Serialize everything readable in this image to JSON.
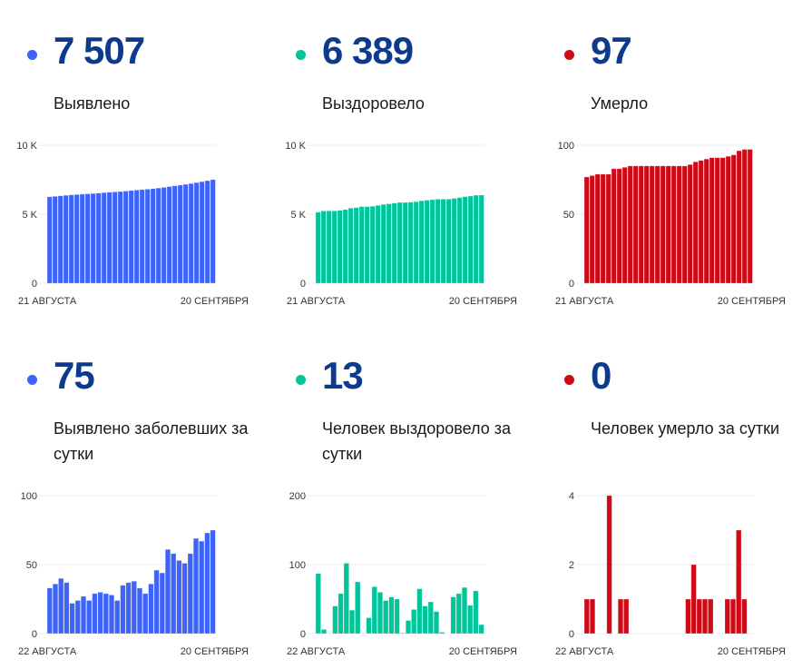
{
  "colors": {
    "cases": "#3e63f8",
    "recovered": "#00c49a",
    "deaths": "#cf0a17",
    "number": "#0c3a8f"
  },
  "panels": [
    {
      "id": "cases-total",
      "value": "7 507",
      "label": "Выявлено",
      "color_key": "cases"
    },
    {
      "id": "recovered-total",
      "value": "6 389",
      "label": "Выздоровело",
      "color_key": "recovered"
    },
    {
      "id": "deaths-total",
      "value": "97",
      "label": "Умерло",
      "color_key": "deaths"
    },
    {
      "id": "cases-daily",
      "value": "75",
      "label": "Выявлено заболевших за сутки",
      "color_key": "cases"
    },
    {
      "id": "recovered-daily",
      "value": "13",
      "label": "Человек выздоровело за сутки",
      "color_key": "recovered"
    },
    {
      "id": "deaths-daily",
      "value": "0",
      "label": "Человек умерло за сутки",
      "color_key": "deaths"
    }
  ],
  "chart_data": [
    {
      "type": "bar",
      "title": "Выявлено",
      "color_key": "cases",
      "x_start_label": "21 АВГУСТА",
      "x_end_label": "20 СЕНТЯБРЯ",
      "ylim": [
        0,
        10000
      ],
      "yticks": [
        0,
        5000,
        10000
      ],
      "ytick_labels": [
        "0",
        "5 K",
        "10 K"
      ],
      "grid": true,
      "values": [
        6261,
        6294,
        6330,
        6370,
        6407,
        6429,
        6453,
        6480,
        6504,
        6533,
        6563,
        6592,
        6620,
        6644,
        6679,
        6716,
        6754,
        6787,
        6816,
        6852,
        6898,
        6942,
        7003,
        7061,
        7114,
        7165,
        7223,
        7292,
        7359,
        7432,
        7507
      ]
    },
    {
      "type": "bar",
      "title": "Выздоровело",
      "color_key": "recovered",
      "x_start_label": "21 АВГУСТА",
      "x_end_label": "20 СЕНТЯБРЯ",
      "ylim": [
        0,
        10000
      ],
      "yticks": [
        0,
        5000,
        10000
      ],
      "ytick_labels": [
        "0",
        "5 K",
        "10 K"
      ],
      "grid": true,
      "values": [
        5151,
        5238,
        5244,
        5244,
        5284,
        5342,
        5444,
        5478,
        5553,
        5553,
        5576,
        5644,
        5704,
        5752,
        5805,
        5855,
        5856,
        5875,
        5910,
        5975,
        6015,
        6061,
        6093,
        6095,
        6095,
        6148,
        6206,
        6273,
        6314,
        6376,
        6389
      ]
    },
    {
      "type": "bar",
      "title": "Умерло",
      "color_key": "deaths",
      "x_start_label": "21 АВГУСТА",
      "x_end_label": "20 СЕНТЯБРЯ",
      "ylim": [
        0,
        100
      ],
      "yticks": [
        0,
        50,
        100
      ],
      "ytick_labels": [
        "0",
        "50",
        "100"
      ],
      "grid": true,
      "values": [
        77,
        78,
        79,
        79,
        79,
        83,
        83,
        84,
        85,
        85,
        85,
        85,
        85,
        85,
        85,
        85,
        85,
        85,
        85,
        86,
        88,
        89,
        90,
        91,
        91,
        91,
        92,
        93,
        96,
        97,
        97
      ]
    },
    {
      "type": "bar",
      "title": "Выявлено заболевших за сутки",
      "color_key": "cases",
      "x_start_label": "22 АВГУСТА",
      "x_end_label": "20 СЕНТЯБРЯ",
      "ylim": [
        0,
        100
      ],
      "yticks": [
        0,
        50,
        100
      ],
      "ytick_labels": [
        "0",
        "50",
        "100"
      ],
      "grid": true,
      "values": [
        33,
        36,
        40,
        37,
        22,
        24,
        27,
        24,
        29,
        30,
        29,
        28,
        24,
        35,
        37,
        38,
        33,
        29,
        36,
        46,
        44,
        61,
        58,
        53,
        51,
        58,
        69,
        67,
        73,
        75
      ]
    },
    {
      "type": "bar",
      "title": "Человек выздоровело за сутки",
      "color_key": "recovered",
      "x_start_label": "22 АВГУСТА",
      "x_end_label": "20 СЕНТЯБРЯ",
      "ylim": [
        0,
        200
      ],
      "yticks": [
        0,
        100,
        200
      ],
      "ytick_labels": [
        "0",
        "100",
        "200"
      ],
      "grid": true,
      "values": [
        87,
        6,
        0,
        40,
        58,
        102,
        34,
        75,
        0,
        23,
        68,
        60,
        48,
        53,
        50,
        1,
        19,
        35,
        65,
        40,
        46,
        32,
        2,
        0,
        53,
        58,
        67,
        41,
        62,
        13
      ]
    },
    {
      "type": "bar",
      "title": "Человек умерло за сутки",
      "color_key": "deaths",
      "x_start_label": "22 АВГУСТА",
      "x_end_label": "20 СЕНТЯБРЯ",
      "ylim": [
        0,
        4
      ],
      "yticks": [
        0,
        2,
        4
      ],
      "ytick_labels": [
        "0",
        "2",
        "4"
      ],
      "grid": true,
      "values": [
        1,
        1,
        0,
        0,
        4,
        0,
        1,
        1,
        0,
        0,
        0,
        0,
        0,
        0,
        0,
        0,
        0,
        0,
        1,
        2,
        1,
        1,
        1,
        0,
        0,
        1,
        1,
        3,
        1,
        0
      ]
    }
  ]
}
